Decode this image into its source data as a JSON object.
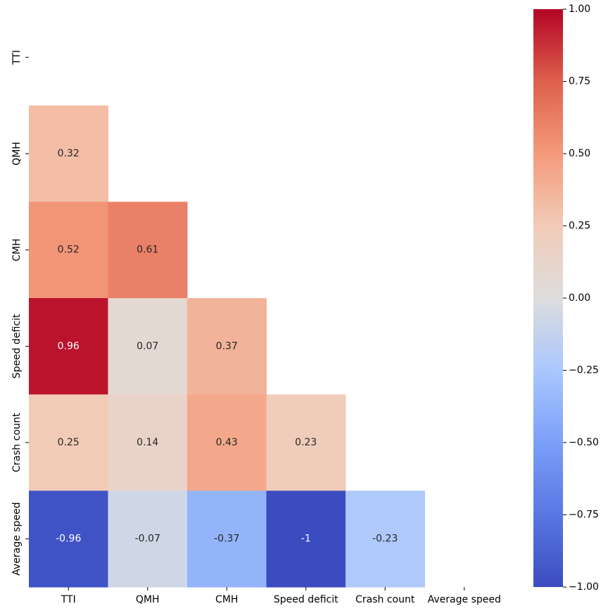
{
  "chart_data": {
    "type": "heatmap",
    "x_categories": [
      "TTI",
      "QMH",
      "CMH",
      "Speed deficit",
      "Crash count",
      "Average speed"
    ],
    "y_categories": [
      "TTI",
      "QMH",
      "CMH",
      "Speed deficit",
      "Crash count",
      "Average speed"
    ],
    "values": [
      [
        null,
        null,
        null,
        null,
        null,
        null
      ],
      [
        0.32,
        null,
        null,
        null,
        null,
        null
      ],
      [
        0.52,
        0.61,
        null,
        null,
        null,
        null
      ],
      [
        0.96,
        0.07,
        0.37,
        null,
        null,
        null
      ],
      [
        0.25,
        0.14,
        0.43,
        0.23,
        null,
        null
      ],
      [
        -0.96,
        -0.07,
        -0.37,
        -1,
        -0.23,
        null
      ]
    ],
    "colormap": [
      "#3b4cc0",
      "#5977e3",
      "#7b9ff9",
      "#aac7fd",
      "#dddddd",
      "#f2cbb7",
      "#f49a7b",
      "#de604d",
      "#b40426"
    ],
    "clim": [
      -1,
      1
    ],
    "cticks": [
      {
        "value": -1,
        "label": "−1.00"
      },
      {
        "value": -0.75,
        "label": "−0.75"
      },
      {
        "value": -0.5,
        "label": "−0.50"
      },
      {
        "value": -0.25,
        "label": "−0.25"
      },
      {
        "value": 0,
        "label": "0.00"
      },
      {
        "value": 0.25,
        "label": "0.25"
      },
      {
        "value": 0.5,
        "label": "0.50"
      },
      {
        "value": 0.75,
        "label": "0.75"
      },
      {
        "value": 1,
        "label": "1.00"
      }
    ]
  }
}
